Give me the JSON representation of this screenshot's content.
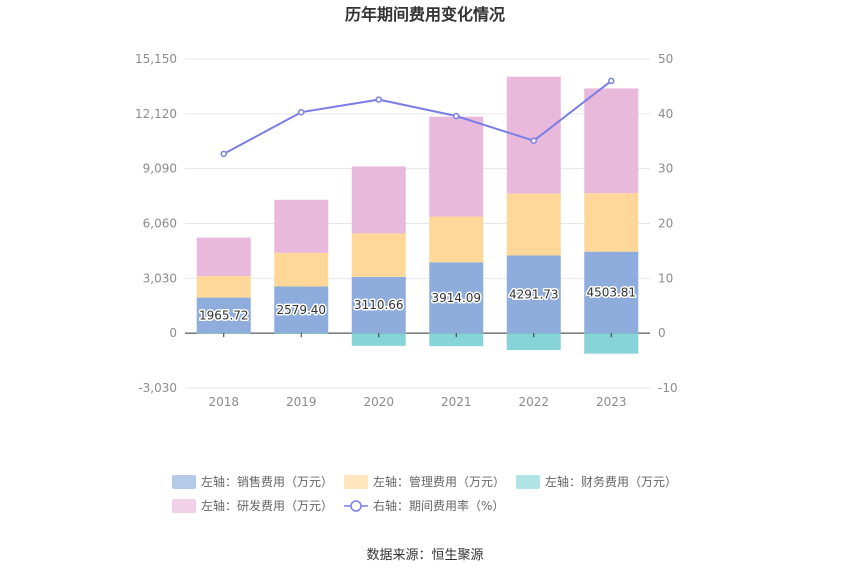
{
  "chart_data": {
    "type": "bar",
    "title": "历年期间费用变化情况",
    "categories": [
      "2018",
      "2019",
      "2020",
      "2021",
      "2022",
      "2023"
    ],
    "left_axis": {
      "ylim": [
        -3030,
        15150
      ],
      "ticks": [
        "-3,030",
        "0",
        "3,030",
        "6,060",
        "9,090",
        "12,120",
        "15,150"
      ],
      "tick_values": [
        -3030,
        0,
        3030,
        6060,
        9090,
        12120,
        15150
      ]
    },
    "right_axis": {
      "ylim": [
        -10,
        50
      ],
      "ticks": [
        "-10",
        "0",
        "10",
        "20",
        "30",
        "40",
        "50"
      ],
      "tick_values": [
        -10,
        0,
        10,
        20,
        30,
        40,
        50
      ]
    },
    "series": [
      {
        "name": "左轴：销售费用（万元）",
        "kind": "stacked-bar",
        "color": "#8eacdc",
        "values": [
          1965.72,
          2579.4,
          3110.66,
          3914.09,
          4291.73,
          4503.81
        ],
        "labels": [
          "1965.72",
          "2579.40",
          "3110.66",
          "3914.09",
          "4291.73",
          "4503.81"
        ]
      },
      {
        "name": "左轴：管理费用（万元）",
        "kind": "stacked-bar",
        "color": "#ffd899",
        "values": [
          1190,
          1860,
          2400,
          2530,
          3420,
          3230
        ]
      },
      {
        "name": "左轴：财务费用（万元）",
        "kind": "stacked-bar",
        "color": "#86d4d8",
        "values": [
          -30,
          -40,
          -700,
          -720,
          -930,
          -1130
        ]
      },
      {
        "name": "左轴：研发费用（万元）",
        "kind": "stacked-bar",
        "color": "#e8b9da",
        "values": [
          2130,
          2930,
          3700,
          5520,
          6460,
          5790
        ]
      },
      {
        "name": "右轴：期间费用率（%）",
        "kind": "line",
        "color": "#7b7fe5",
        "values": [
          32.7,
          40.3,
          42.6,
          39.6,
          35.1,
          46.0
        ]
      }
    ],
    "legend_position": "bottom",
    "grid": true
  },
  "source": "数据来源：恒生聚源"
}
